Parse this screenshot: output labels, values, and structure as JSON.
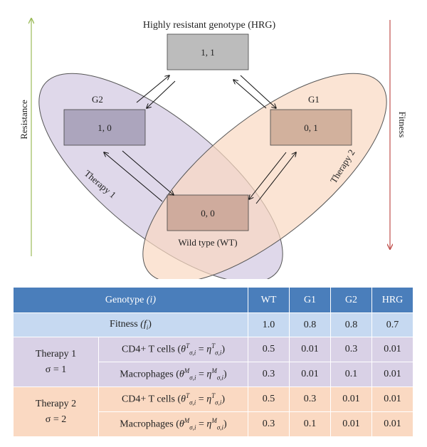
{
  "diagram": {
    "title": "Highly resistant genotype (HRG)",
    "nodes": {
      "hrg": "1, 1",
      "g2": "1, 0",
      "g1": "0, 1",
      "wt": "0, 0"
    },
    "labels": {
      "g2": "G2",
      "g1": "G1",
      "wt": "Wild type (WT)",
      "therapy1": "Therapy 1",
      "therapy2": "Therapy 2",
      "resistance": "Resistance",
      "fitness": "Fitness"
    },
    "colors": {
      "therapy1_ellipse": "#d9d1e6",
      "therapy2_ellipse": "#fad9c2",
      "node_box": "#b0b0b0",
      "resistance_arrow": "#9bbb59",
      "fitness_arrow": "#c0504d"
    }
  },
  "table": {
    "header": {
      "genotype": "Genotype",
      "genotype_sym": "(i)",
      "cols": [
        "WT",
        "G1",
        "G2",
        "HRG"
      ]
    },
    "fitness": {
      "label": "Fitness",
      "sym": "(f",
      "sub": "i",
      "close": ")",
      "values": [
        "1.0",
        "0.8",
        "0.8",
        "0.7"
      ]
    },
    "therapy1": {
      "name": "Therapy 1",
      "sigma": "σ = 1",
      "rows": [
        {
          "label": "CD4+ T cells",
          "sup": "T",
          "sup2": "T",
          "values": [
            "0.5",
            "0.01",
            "0.3",
            "0.01"
          ]
        },
        {
          "label": "Macrophages",
          "sup": "M",
          "sup2": "M",
          "values": [
            "0.3",
            "0.01",
            "0.1",
            "0.01"
          ]
        }
      ]
    },
    "therapy2": {
      "name": "Therapy 2",
      "sigma": "σ = 2",
      "rows": [
        {
          "label": "CD4+ T cells",
          "sup": "T",
          "sup2": "T",
          "values": [
            "0.5",
            "0.3",
            "0.01",
            "0.01"
          ]
        },
        {
          "label": "Macrophages",
          "sup": "M",
          "sup2": "M",
          "values": [
            "0.3",
            "0.1",
            "0.01",
            "0.01"
          ]
        }
      ]
    },
    "colors": {
      "header": "#4a7ebb",
      "fitness_row": "#c6d9f1",
      "therapy1_rows": "#d9d1e6",
      "therapy2_rows": "#fad9c2"
    }
  }
}
